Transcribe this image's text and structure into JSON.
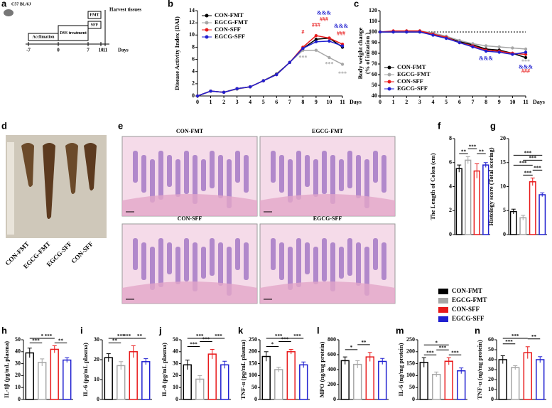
{
  "timeline": {
    "label": "a",
    "strain": "C57 BL/6J",
    "phases": [
      "Acclimation",
      "DSS treatment",
      "FMT",
      "SFF"
    ],
    "end": "Harvest tissues",
    "ticks": [
      -7,
      0,
      7,
      10,
      11
    ],
    "unit": "Days"
  },
  "colon_photo": {
    "label": "d",
    "samples": [
      "CON-FMT",
      "EGCG-FMT",
      "EGCG-SFF",
      "CON-SFF"
    ]
  },
  "histology": {
    "label": "e",
    "images": [
      "CON-FMT",
      "EGCG-FMT",
      "CON-SFF",
      "EGCG-SFF"
    ]
  },
  "legend": {
    "names": [
      "CON-FMT",
      "EGCG-FMT",
      "CON-SFF",
      "EGCG-SFF"
    ],
    "colors": [
      "#000000",
      "#a6a6a6",
      "#e8191a",
      "#2020d0"
    ]
  },
  "chart_data": [
    {
      "type": "line",
      "label": "b",
      "ylabel": "Disease Activity Index (DAI)",
      "xlabel": "Days",
      "x": [
        0,
        1,
        2,
        3,
        4,
        5,
        6,
        7,
        8,
        9,
        10,
        11
      ],
      "xlim": [
        0,
        11
      ],
      "xticks": [
        0,
        1,
        2,
        3,
        4,
        5,
        6,
        7,
        8,
        9,
        10,
        11
      ],
      "ylim": [
        0,
        14
      ],
      "yticks": [
        0,
        2,
        4,
        6,
        8,
        10,
        12,
        14
      ],
      "legend_position": "upper left",
      "series": [
        {
          "name": "CON-FMT",
          "color": "#000000",
          "values": [
            0,
            0.8,
            0.6,
            1.2,
            1.5,
            2.5,
            3.6,
            5.5,
            7.8,
            9.3,
            9.5,
            8
          ]
        },
        {
          "name": "EGCG-FMT",
          "color": "#a6a6a6",
          "values": [
            0,
            0.8,
            0.6,
            1.1,
            1.5,
            2.5,
            3.5,
            5.5,
            7.5,
            7.5,
            6.3,
            5.2
          ]
        },
        {
          "name": "CON-SFF",
          "color": "#e8191a",
          "values": [
            0,
            0.8,
            0.6,
            1.2,
            1.5,
            2.5,
            3.5,
            5.5,
            8,
            9.9,
            9.5,
            8.5
          ]
        },
        {
          "name": "EGCG-SFF",
          "color": "#2020d0",
          "values": [
            0,
            0.8,
            0.6,
            1.2,
            1.5,
            2.5,
            3.5,
            5.5,
            7.8,
            8.9,
            9,
            8.2
          ]
        }
      ],
      "annotations": [
        {
          "text": "#",
          "color": "#e8191a"
        },
        {
          "text": "###",
          "color": "#e8191a"
        },
        {
          "text": "&&&",
          "color": "#2020d0"
        },
        {
          "text": "###",
          "color": "#e8191a"
        },
        {
          "text": "&&&",
          "color": "#2020d0"
        },
        {
          "text": "###",
          "color": "#e8191a"
        },
        {
          "text": "***",
          "color": "#a6a6a6"
        },
        {
          "text": "***",
          "color": "#a6a6a6"
        },
        {
          "text": "***",
          "color": "#a6a6a6"
        }
      ]
    },
    {
      "type": "line",
      "label": "c",
      "ylabel": [
        "Body weight change",
        "(% of initation )"
      ],
      "xlabel": "Days",
      "x": [
        0,
        1,
        2,
        3,
        4,
        5,
        6,
        7,
        8,
        9,
        10,
        11
      ],
      "xlim": [
        0,
        11
      ],
      "xticks": [
        0,
        1,
        2,
        3,
        4,
        5,
        6,
        7,
        8,
        9,
        10,
        11
      ],
      "ylim": [
        40,
        120
      ],
      "yticks": [
        40,
        50,
        60,
        70,
        80,
        90,
        100,
        110,
        120
      ],
      "reference_line": 100,
      "legend_position": "lower left",
      "series": [
        {
          "name": "CON-FMT",
          "color": "#000000",
          "values": [
            100,
            100,
            100,
            100,
            98,
            95,
            91,
            88,
            84,
            83,
            80,
            76
          ]
        },
        {
          "name": "EGCG-FMT",
          "color": "#a6a6a6",
          "values": [
            100,
            100,
            101,
            101,
            99,
            96,
            92,
            89,
            87,
            86,
            85,
            84
          ]
        },
        {
          "name": "CON-SFF",
          "color": "#e8191a",
          "values": [
            100,
            101,
            101,
            101,
            98,
            95,
            90,
            87,
            83,
            82,
            80,
            79
          ]
        },
        {
          "name": "EGCG-SFF",
          "color": "#2020d0",
          "values": [
            100,
            100,
            100,
            100,
            97,
            94,
            90,
            86,
            82,
            81,
            79,
            81
          ]
        }
      ],
      "annotations": [
        {
          "text": "&&&",
          "color": "#2020d0"
        },
        {
          "text": "***",
          "color": "#a6a6a6"
        },
        {
          "text": "&&&",
          "color": "#2020d0"
        },
        {
          "text": "###",
          "color": "#e8191a"
        }
      ]
    },
    {
      "type": "bar",
      "label": "f",
      "ylabel": "The Length of Colon (cm)",
      "ylim": [
        0,
        8
      ],
      "yticks": [
        0,
        2,
        4,
        6,
        8
      ],
      "values": [
        5.5,
        6.2,
        5.3,
        5.8
      ],
      "errors": [
        0.3,
        0.3,
        0.6,
        0.2
      ],
      "annotations": [
        "**",
        "***",
        "**"
      ]
    },
    {
      "type": "bar",
      "label": "g",
      "ylabel": "Histology score (Total scoring)",
      "ylim": [
        0,
        20
      ],
      "yticks": [
        0,
        5,
        10,
        15,
        20
      ],
      "values": [
        4.8,
        3.5,
        11,
        8.3
      ],
      "errors": [
        0.5,
        0.5,
        0.8,
        0.4
      ],
      "annotations": [
        "***",
        "***",
        "***",
        "***",
        "***"
      ]
    },
    {
      "type": "bar",
      "label": "h",
      "ylabel": "IL-1β (pg/mL plasma)",
      "ylim": [
        0,
        50
      ],
      "yticks": [
        0,
        10,
        20,
        30,
        40,
        50
      ],
      "values": [
        39,
        31,
        42,
        33
      ],
      "errors": [
        4,
        3,
        3,
        2
      ],
      "annotations": [
        "*",
        "***",
        "***",
        "**"
      ]
    },
    {
      "type": "bar",
      "label": "i",
      "ylabel": "IL-6 (pg/mL plasma)",
      "ylim": [
        0,
        30
      ],
      "yticks": [
        0,
        10,
        20,
        30
      ],
      "values": [
        21,
        17,
        24,
        19
      ],
      "errors": [
        2,
        2,
        3,
        1.5
      ],
      "annotations": [
        "***",
        "**",
        "***",
        "**"
      ]
    },
    {
      "type": "bar",
      "label": "j",
      "ylabel": "IL-8 (pg/mL plasma)",
      "ylim": [
        0,
        50
      ],
      "yticks": [
        0,
        10,
        20,
        30,
        40,
        50
      ],
      "values": [
        29,
        17,
        38,
        29
      ],
      "errors": [
        4,
        3,
        4,
        3
      ],
      "annotations": [
        "***",
        "***",
        "***",
        "***"
      ]
    },
    {
      "type": "bar",
      "label": "k",
      "ylabel": "TNF-α (pg/mL plasma)",
      "ylim": [
        0,
        250
      ],
      "yticks": [
        0,
        50,
        100,
        150,
        200,
        250
      ],
      "values": [
        180,
        125,
        200,
        145
      ],
      "errors": [
        20,
        10,
        10,
        12
      ],
      "annotations": [
        "***",
        "*",
        "***",
        "***"
      ]
    },
    {
      "type": "bar",
      "label": "l",
      "ylabel": "MPO (ng/mg protein)",
      "ylim": [
        0,
        800
      ],
      "yticks": [
        0,
        200,
        400,
        600,
        800
      ],
      "values": [
        520,
        470,
        570,
        510
      ],
      "errors": [
        50,
        50,
        60,
        40
      ],
      "annotations": [
        "*",
        "**"
      ]
    },
    {
      "type": "bar",
      "label": "m",
      "ylabel": "IL-6 (ng/mg protein)",
      "ylim": [
        0,
        250
      ],
      "yticks": [
        0,
        50,
        100,
        150,
        200,
        250
      ],
      "values": [
        155,
        105,
        160,
        120
      ],
      "errors": [
        20,
        10,
        15,
        12
      ],
      "annotations": [
        "*",
        "***",
        "***",
        "***"
      ]
    },
    {
      "type": "bar",
      "label": "n",
      "ylabel": "TNF-α (ng/mg protein)",
      "ylim": [
        0,
        60
      ],
      "yticks": [
        0,
        10,
        20,
        30,
        40,
        50,
        60
      ],
      "values": [
        40,
        32,
        47,
        40
      ],
      "errors": [
        4,
        2,
        6,
        3
      ],
      "annotations": [
        "***",
        "***",
        "**"
      ]
    }
  ]
}
